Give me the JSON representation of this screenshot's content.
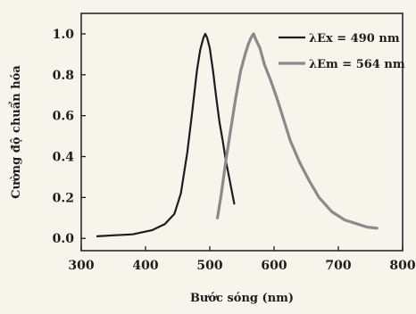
{
  "chart_data": {
    "type": "line",
    "xlabel": "Bước sóng (nm)",
    "ylabel": "Cường độ chuẩn hóa",
    "xlim": [
      300,
      800
    ],
    "ylim": [
      -0.06,
      1.1
    ],
    "xticks": [
      300,
      400,
      500,
      600,
      700,
      800
    ],
    "yticks": [
      0.0,
      0.2,
      0.4,
      0.6,
      0.8,
      1.0
    ],
    "xtick_labels": [
      "300",
      "400",
      "500",
      "600",
      "700",
      "800"
    ],
    "ytick_labels": [
      "0.0",
      "0.2",
      "0.4",
      "0.6",
      "0.8",
      "1.0"
    ],
    "grid": false,
    "legend_position": "top-right",
    "series": [
      {
        "name": "λEx = 490 nm",
        "color": "#1c1c1c",
        "x": [
          325,
          350,
          380,
          410,
          430,
          445,
          455,
          465,
          472,
          480,
          485,
          490,
          493,
          496,
          500,
          505,
          510,
          515,
          520,
          525,
          530,
          538
        ],
        "y": [
          0.01,
          0.015,
          0.02,
          0.04,
          0.07,
          0.12,
          0.22,
          0.42,
          0.6,
          0.82,
          0.92,
          0.98,
          1.0,
          0.98,
          0.93,
          0.82,
          0.69,
          0.57,
          0.48,
          0.38,
          0.3,
          0.17
        ]
      },
      {
        "name": "λEm = 564 nm",
        "color": "#8a8a8a",
        "x": [
          512,
          518,
          525,
          532,
          540,
          548,
          555,
          560,
          564,
          568,
          572,
          578,
          585,
          595,
          605,
          615,
          625,
          640,
          655,
          670,
          690,
          710,
          730,
          745,
          760
        ],
        "y": [
          0.1,
          0.22,
          0.38,
          0.52,
          0.68,
          0.82,
          0.9,
          0.95,
          0.98,
          1.0,
          0.97,
          0.93,
          0.85,
          0.77,
          0.68,
          0.58,
          0.48,
          0.37,
          0.28,
          0.2,
          0.13,
          0.09,
          0.07,
          0.055,
          0.05
        ]
      }
    ]
  }
}
